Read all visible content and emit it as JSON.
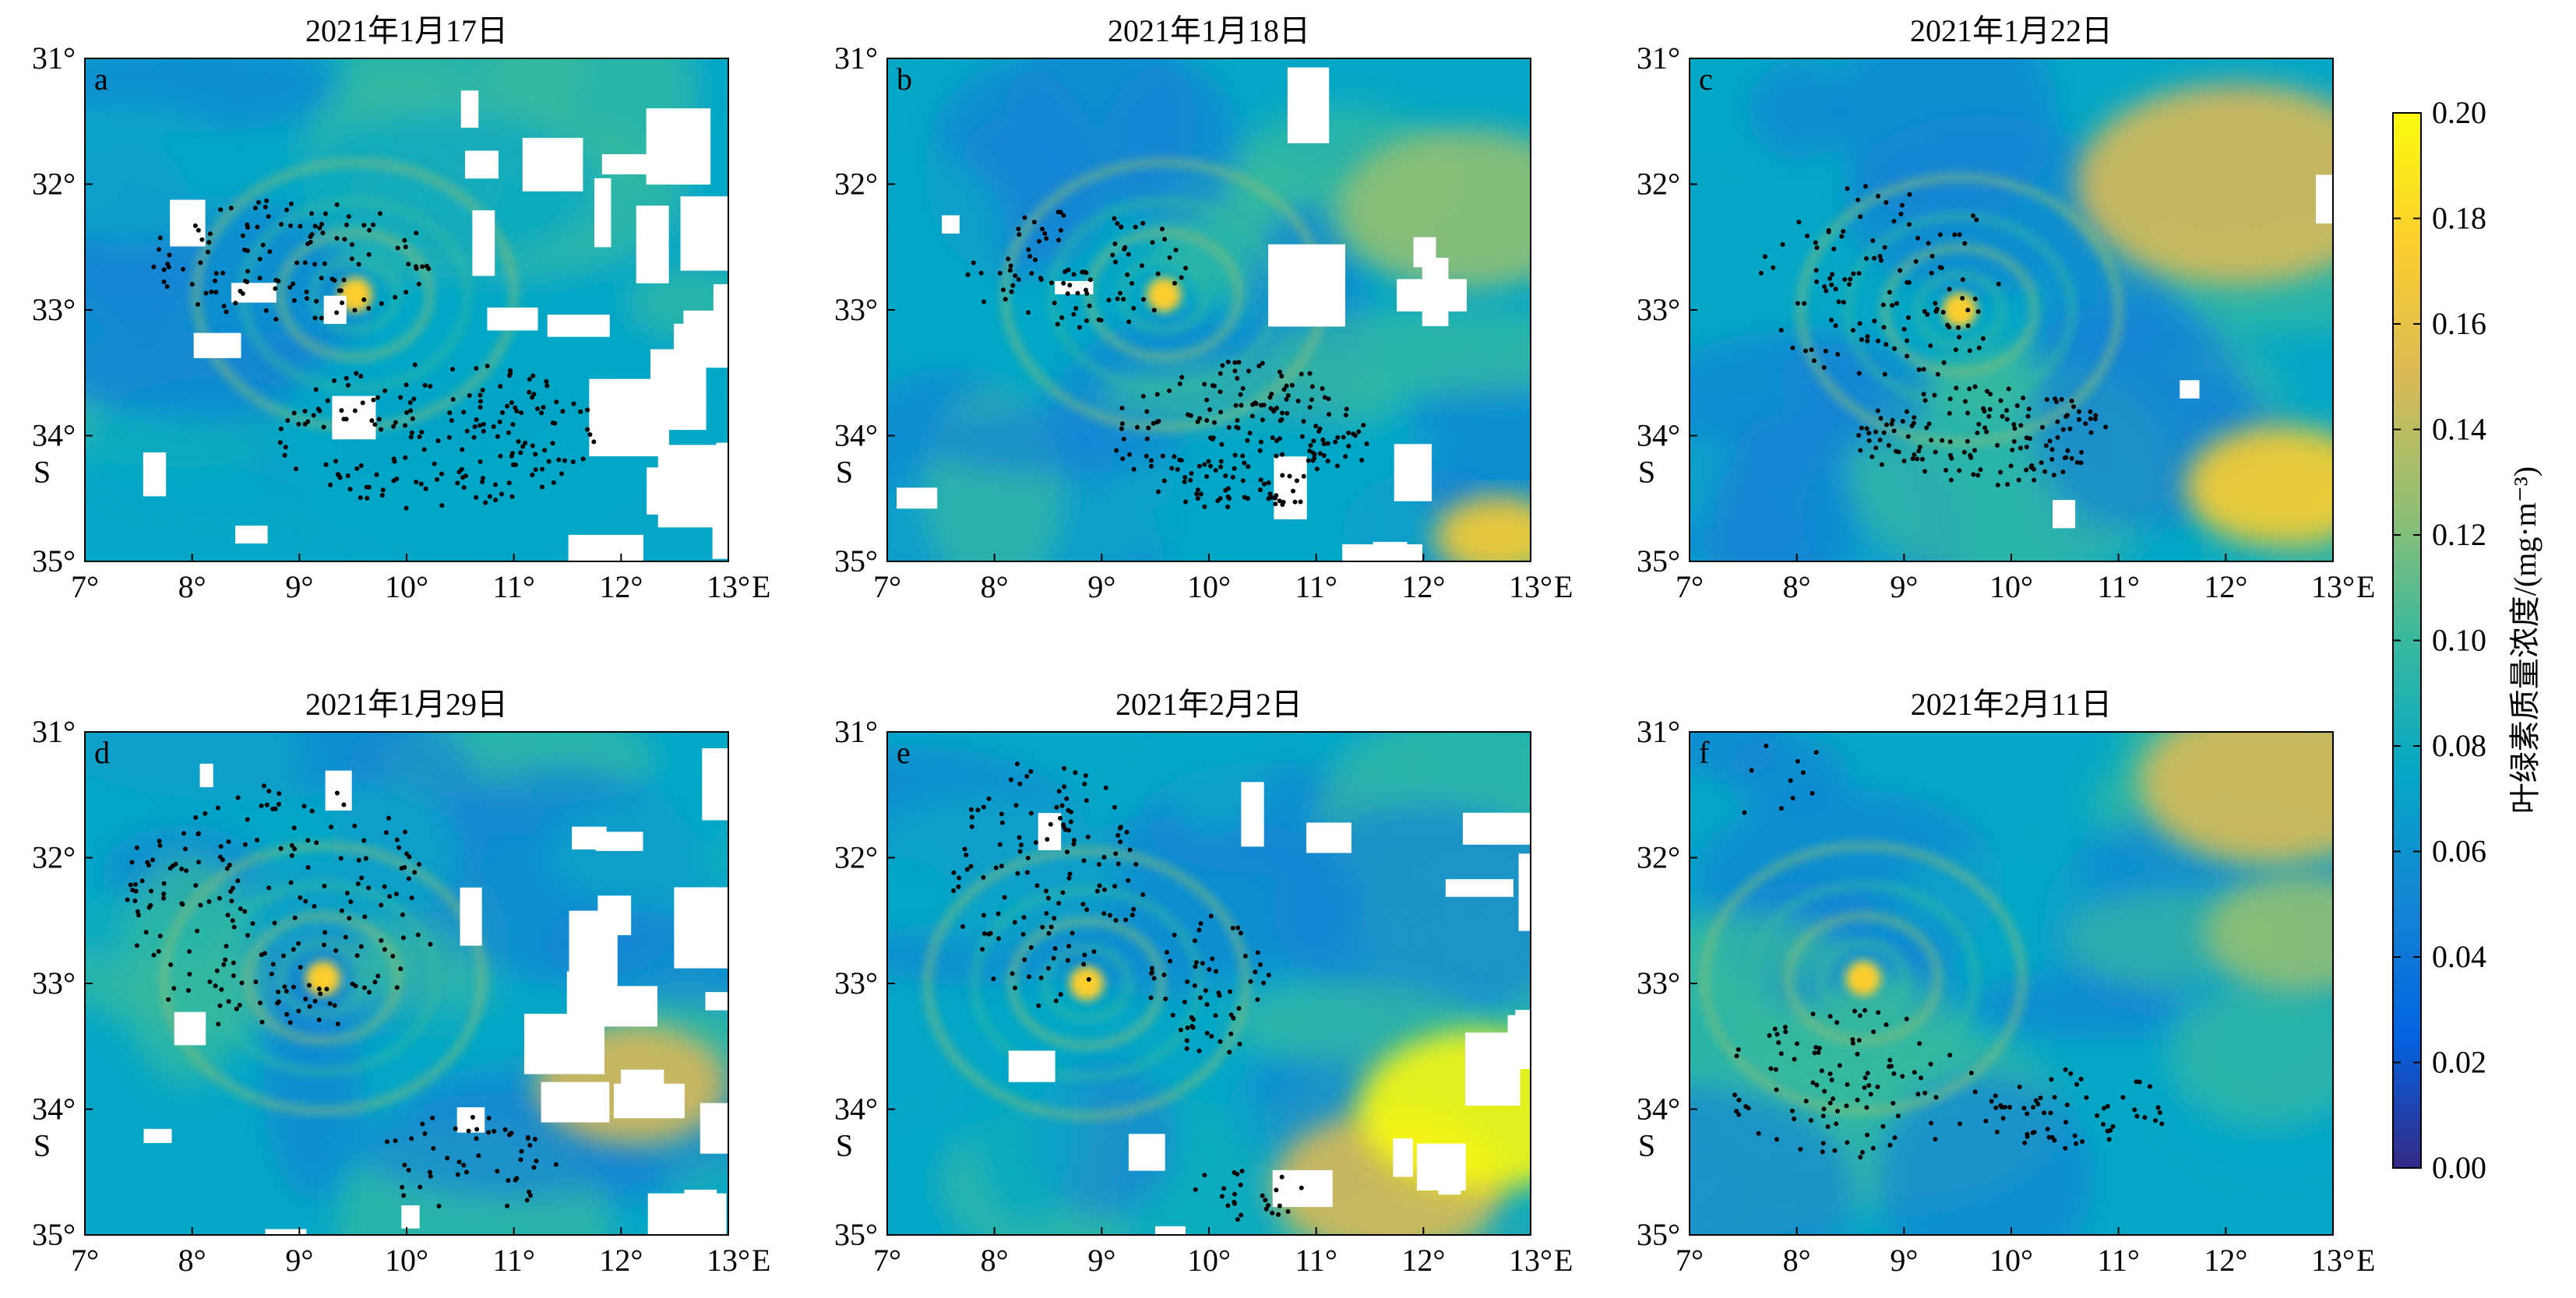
{
  "panels": [
    {
      "label": "a",
      "title": "2021年1月17日"
    },
    {
      "label": "b",
      "title": "2021年1月18日"
    },
    {
      "label": "c",
      "title": "2021年1月22日"
    },
    {
      "label": "d",
      "title": "2021年1月29日"
    },
    {
      "label": "e",
      "title": "2021年2月2日"
    },
    {
      "label": "f",
      "title": "2021年2月11日"
    }
  ],
  "axes": {
    "x_ticks": [
      "7°",
      "8°",
      "9°",
      "10°",
      "11°",
      "12°",
      "13°"
    ],
    "x_suffix": "E",
    "y_ticks": [
      "31°",
      "32°",
      "33°",
      "34°",
      "35°"
    ],
    "y_suffix": "S",
    "lon_range": [
      7,
      13
    ],
    "lat_range": [
      31,
      35
    ]
  },
  "colorbar": {
    "label": "叶绿素质量浓度/(mg·m⁻³)",
    "ticks": [
      "0.00",
      "0.02",
      "0.04",
      "0.06",
      "0.08",
      "0.10",
      "0.12",
      "0.14",
      "0.16",
      "0.18",
      "0.20"
    ],
    "range": [
      0.0,
      0.2
    ],
    "colormap": "parula",
    "colors": [
      "#352a87",
      "#0363e1",
      "#1485d4",
      "#06a7c6",
      "#38b99e",
      "#92bf73",
      "#d9ba56",
      "#fcce2e",
      "#f9fb0e"
    ]
  },
  "legend_colors": {
    "land_or_cloud": "#ffffff",
    "particles": "#000000"
  }
}
